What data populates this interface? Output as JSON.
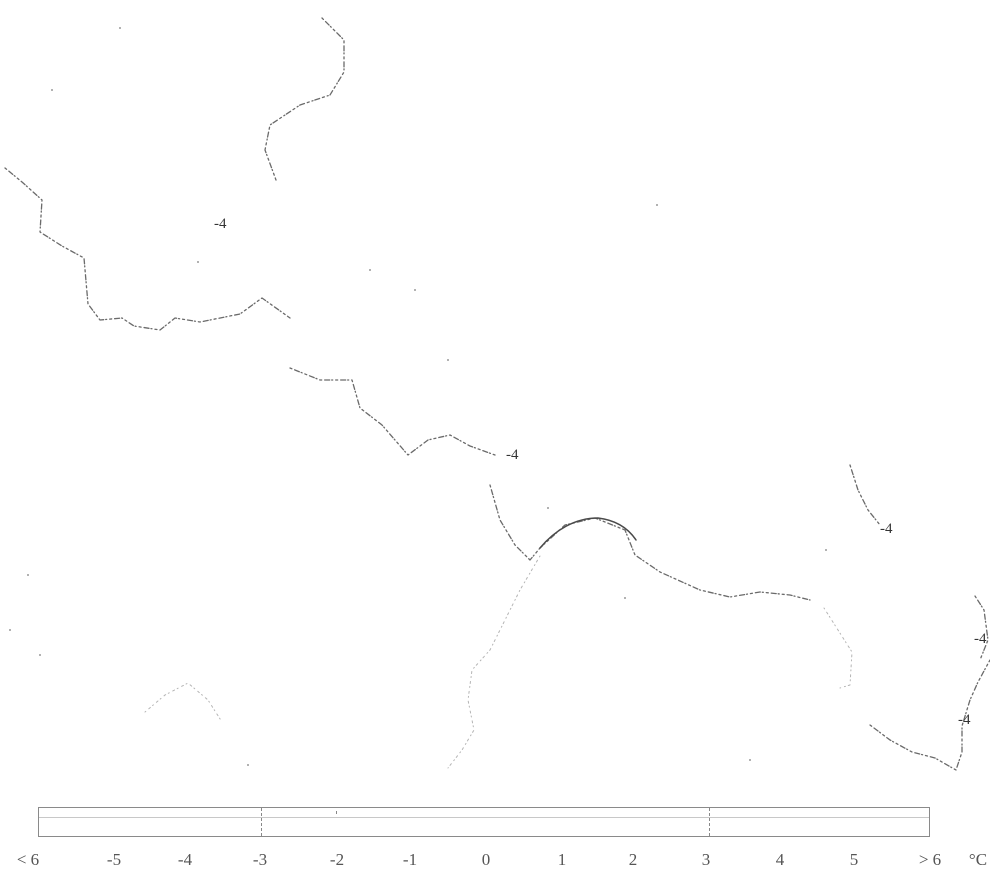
{
  "map": {
    "contour_labels": [
      {
        "id": "label-1",
        "text": "-4"
      },
      {
        "id": "label-2",
        "text": "-4"
      },
      {
        "id": "label-3",
        "text": "-4"
      },
      {
        "id": "label-4",
        "text": "-4"
      },
      {
        "id": "label-5",
        "text": "-4"
      }
    ]
  },
  "legend": {
    "ticks": [
      "< 6",
      "-5",
      "-4",
      "-3",
      "-2",
      "-1",
      "0",
      "1",
      "2",
      "3",
      "4",
      "5",
      "> 6",
      "°C"
    ]
  },
  "colors": {
    "contour": "#6a6a6a",
    "background": "#ffffff"
  }
}
